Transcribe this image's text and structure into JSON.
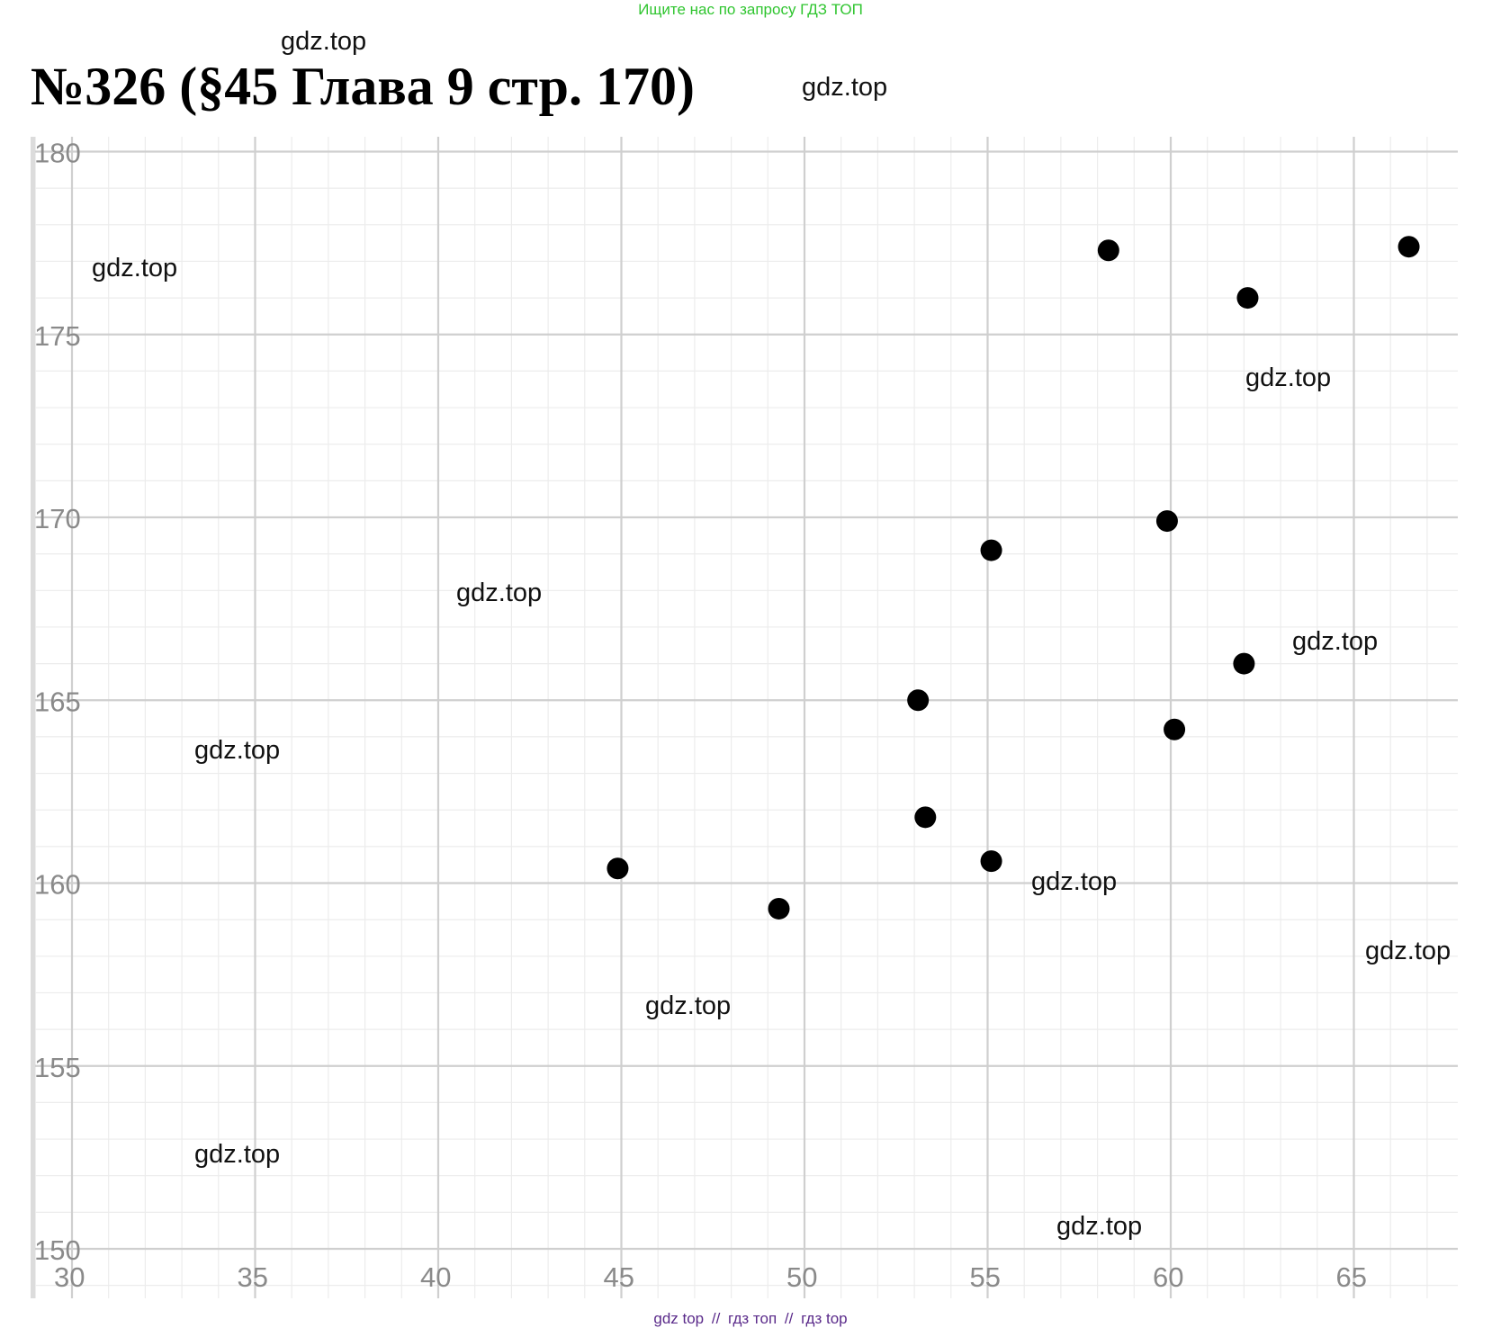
{
  "banner": "Ищите нас по запросу ГДЗ ТОП",
  "title": "№326 (§45 Глава 9  стр. 170)",
  "watermark": "gdz.top",
  "footer": {
    "link1": "gdz top",
    "sep1": "//",
    "link2": "гдз топ",
    "sep2": "//",
    "link3": "гдз top"
  },
  "colors": {
    "point": "#000000",
    "grid_major": "#cfcfcf",
    "grid_minor": "#ececec",
    "banner": "#2fc52f",
    "footer": "#5a2a8a"
  },
  "chart_data": {
    "type": "scatter",
    "title": "",
    "xlabel": "",
    "ylabel": "",
    "xlim": [
      30,
      68
    ],
    "ylim": [
      150,
      181
    ],
    "x_ticks": [
      30,
      35,
      40,
      45,
      50,
      55,
      60,
      65
    ],
    "y_ticks": [
      150,
      155,
      160,
      165,
      170,
      175,
      180
    ],
    "x_tick_labels": [
      "30",
      "35",
      "40",
      "45",
      "50",
      "55",
      "60",
      "65"
    ],
    "y_tick_labels": [
      "150",
      "155",
      "160",
      "165",
      "170",
      "175",
      "180"
    ],
    "grid": true,
    "points": [
      {
        "x": 44.9,
        "y": 160.4
      },
      {
        "x": 49.3,
        "y": 159.3
      },
      {
        "x": 53.1,
        "y": 165.0
      },
      {
        "x": 53.3,
        "y": 161.8
      },
      {
        "x": 55.1,
        "y": 160.6
      },
      {
        "x": 55.1,
        "y": 169.1
      },
      {
        "x": 58.3,
        "y": 177.3
      },
      {
        "x": 59.9,
        "y": 169.9
      },
      {
        "x": 60.1,
        "y": 164.2
      },
      {
        "x": 62.0,
        "y": 166.0
      },
      {
        "x": 62.1,
        "y": 176.0
      },
      {
        "x": 66.5,
        "y": 177.4
      }
    ]
  }
}
